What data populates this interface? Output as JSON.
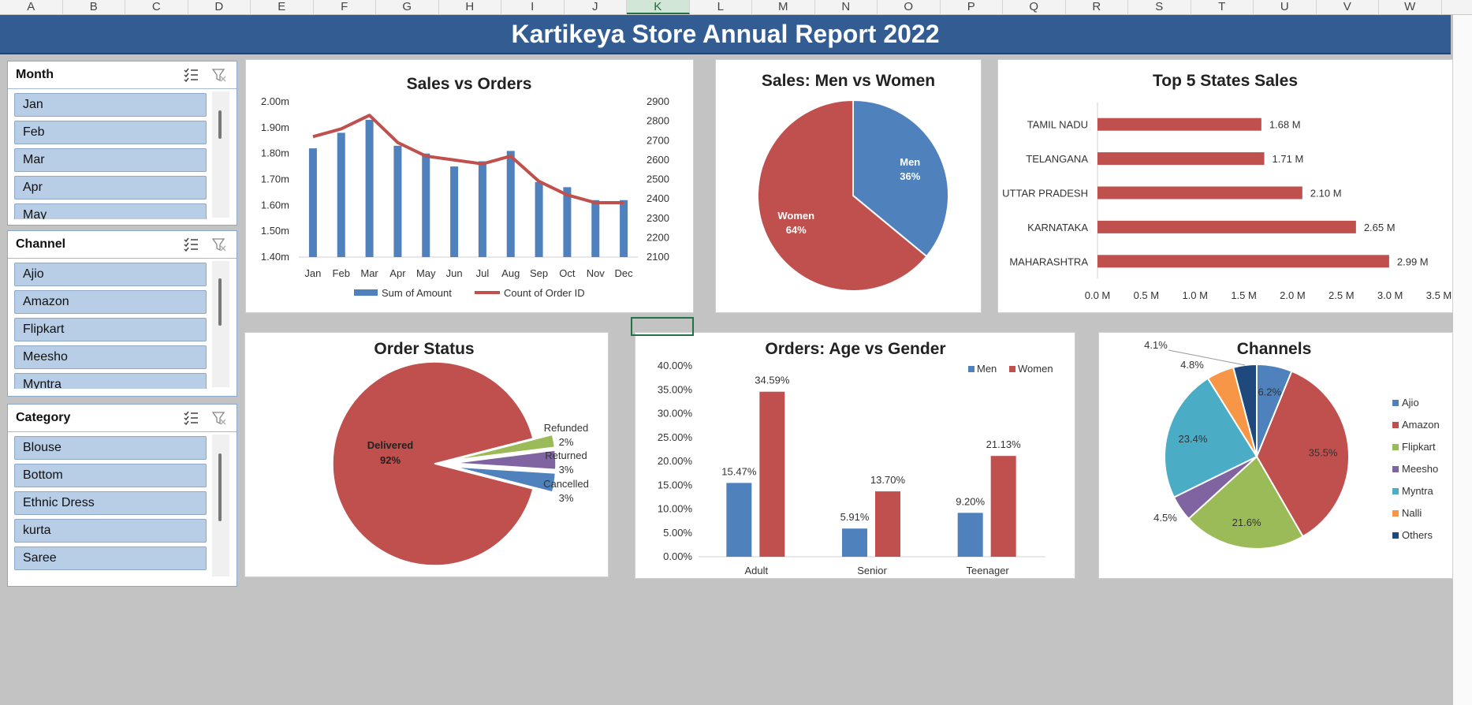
{
  "columns": [
    "A",
    "B",
    "C",
    "D",
    "E",
    "F",
    "G",
    "H",
    "I",
    "J",
    "K",
    "L",
    "M",
    "N",
    "O",
    "P",
    "Q",
    "R",
    "S",
    "T",
    "U",
    "V",
    "W"
  ],
  "selected_column": "K",
  "report_title": "Kartikeya Store Annual Report 2022",
  "slicers": {
    "month": {
      "title": "Month",
      "items": [
        "Jan",
        "Feb",
        "Mar",
        "Apr",
        "May"
      ]
    },
    "channel": {
      "title": "Channel",
      "items": [
        "Ajio",
        "Amazon",
        "Flipkart",
        "Meesho",
        "Myntra"
      ]
    },
    "category": {
      "title": "Category",
      "items": [
        "Blouse",
        "Bottom",
        "Ethnic Dress",
        "kurta",
        "Saree"
      ]
    }
  },
  "colors": {
    "blue": "#4f81bd",
    "red": "#c0504d",
    "green": "#9bbb59",
    "purple": "#8064a2",
    "teal": "#4bacc6",
    "orange": "#f79646",
    "navy": "#1f497d",
    "header": "#335d92"
  },
  "chart_data": [
    {
      "id": "sales_vs_orders",
      "type": "bar",
      "title": "Sales vs Orders",
      "categories": [
        "Jan",
        "Feb",
        "Mar",
        "Apr",
        "May",
        "Jun",
        "Jul",
        "Aug",
        "Sep",
        "Oct",
        "Nov",
        "Dec"
      ],
      "series": [
        {
          "name": "Sum of Amount",
          "type": "bar",
          "axis": "left",
          "values": [
            1.82,
            1.88,
            1.93,
            1.83,
            1.8,
            1.75,
            1.77,
            1.81,
            1.69,
            1.67,
            1.62,
            1.62
          ]
        },
        {
          "name": "Count of Order ID",
          "type": "line",
          "axis": "right",
          "values": [
            2720,
            2760,
            2830,
            2690,
            2620,
            2600,
            2580,
            2620,
            2490,
            2420,
            2380,
            2380
          ]
        }
      ],
      "left_axis": {
        "ylim": [
          1.4,
          2.0
        ],
        "ticks": [
          "2.00m",
          "1.90m",
          "1.80m",
          "1.70m",
          "1.60m",
          "1.50m",
          "1.40m"
        ]
      },
      "right_axis": {
        "ylim": [
          2100,
          2900
        ],
        "ticks": [
          "2900",
          "2800",
          "2700",
          "2600",
          "2500",
          "2400",
          "2300",
          "2200",
          "2100"
        ]
      },
      "legend": "bottom"
    },
    {
      "id": "men_vs_women",
      "type": "pie",
      "title": "Sales: Men vs Women",
      "slices": [
        {
          "label": "Men",
          "value": 36,
          "text": "36%"
        },
        {
          "label": "Women",
          "value": 64,
          "text": "64%"
        }
      ]
    },
    {
      "id": "top_states",
      "type": "bar",
      "orientation": "horizontal",
      "title": "Top 5 States Sales",
      "categories": [
        "TAMIL NADU",
        "TELANGANA",
        "UTTAR PRADESH",
        "KARNATAKA",
        "MAHARASHTRA"
      ],
      "values": [
        1.68,
        1.71,
        2.1,
        2.65,
        2.99
      ],
      "value_labels": [
        "1.68 M",
        "1.71 M",
        "2.10 M",
        "2.65 M",
        "2.99 M"
      ],
      "xlim": [
        0,
        3.5
      ],
      "ticks": [
        "0.0 M",
        "0.5 M",
        "1.0 M",
        "1.5 M",
        "2.0 M",
        "2.5 M",
        "3.0 M",
        "3.5 M"
      ]
    },
    {
      "id": "order_status",
      "type": "pie",
      "title": "Order Status",
      "slices": [
        {
          "label": "Delivered",
          "value": 92,
          "text": "92%"
        },
        {
          "label": "Refunded",
          "value": 2,
          "text": "2%"
        },
        {
          "label": "Returned",
          "value": 3,
          "text": "3%"
        },
        {
          "label": "Cancelled",
          "value": 3,
          "text": "3%"
        }
      ]
    },
    {
      "id": "age_vs_gender",
      "type": "bar",
      "title": "Orders: Age vs Gender",
      "categories": [
        "Adult",
        "Senior",
        "Teenager"
      ],
      "series": [
        {
          "name": "Men",
          "values": [
            15.47,
            5.91,
            9.2
          ],
          "labels": [
            "15.47%",
            "5.91%",
            "9.20%"
          ]
        },
        {
          "name": "Women",
          "values": [
            34.59,
            13.7,
            21.13
          ],
          "labels": [
            "34.59%",
            "13.70%",
            "21.13%"
          ]
        }
      ],
      "ylim": [
        0,
        40
      ],
      "ticks": [
        "40.00%",
        "35.00%",
        "30.00%",
        "25.00%",
        "20.00%",
        "15.00%",
        "10.00%",
        "5.00%",
        "0.00%"
      ],
      "legend": "top-right"
    },
    {
      "id": "channels",
      "type": "pie",
      "title": "Channels",
      "slices": [
        {
          "label": "Ajio",
          "value": 6.2,
          "text": "6.2%"
        },
        {
          "label": "Amazon",
          "value": 35.5,
          "text": "35.5%"
        },
        {
          "label": "Flipkart",
          "value": 21.6,
          "text": "21.6%"
        },
        {
          "label": "Meesho",
          "value": 4.5,
          "text": "4.5%"
        },
        {
          "label": "Myntra",
          "value": 23.4,
          "text": "23.4%"
        },
        {
          "label": "Nalli",
          "value": 4.8,
          "text": "4.8%"
        },
        {
          "label": "Others",
          "value": 4.1,
          "text": "4.1%"
        }
      ],
      "legend": "right"
    }
  ]
}
